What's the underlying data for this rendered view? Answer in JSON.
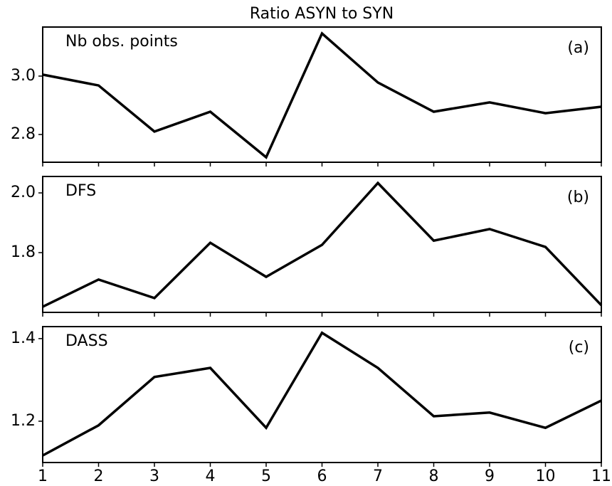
{
  "chart_data": [
    {
      "type": "line",
      "title": "Ratio ASYN to SYN",
      "annotations": [
        "Nb obs. points",
        "(a)"
      ],
      "x": [
        1,
        2,
        3,
        4,
        5,
        6,
        7,
        8,
        9,
        10,
        11
      ],
      "series": [
        {
          "color": "#000000",
          "values": [
            3.005,
            2.968,
            2.81,
            2.878,
            2.722,
            3.146,
            2.978,
            2.878,
            2.91,
            2.873,
            2.895
          ]
        }
      ],
      "xlim": [
        1,
        11
      ],
      "xticks": [
        1,
        2,
        3,
        4,
        5,
        6,
        7,
        8,
        9,
        10,
        11
      ],
      "ylim": [
        2.705,
        3.168
      ],
      "yticks": [
        {
          "value": 2.8,
          "label": "2.8"
        },
        {
          "value": 3.0,
          "label": "3.0"
        }
      ]
    },
    {
      "type": "line",
      "annotations": [
        "DFS",
        "(b)"
      ],
      "x": [
        1,
        2,
        3,
        4,
        5,
        6,
        7,
        8,
        9,
        10,
        11
      ],
      "series": [
        {
          "color": "#000000",
          "values": [
            1.619,
            1.71,
            1.648,
            1.833,
            1.719,
            1.826,
            2.033,
            1.84,
            1.879,
            1.819,
            1.624
          ]
        }
      ],
      "xlim": [
        1,
        11
      ],
      "xticks": [
        1,
        2,
        3,
        4,
        5,
        6,
        7,
        8,
        9,
        10,
        11
      ],
      "ylim": [
        1.6,
        2.055
      ],
      "yticks": [
        {
          "value": 1.8,
          "label": "1.8"
        },
        {
          "value": 2.0,
          "label": "2.0"
        }
      ]
    },
    {
      "type": "line",
      "annotations": [
        "DASS",
        "(c)"
      ],
      "x": [
        1,
        2,
        3,
        4,
        5,
        6,
        7,
        8,
        9,
        10,
        11
      ],
      "series": [
        {
          "color": "#000000",
          "values": [
            1.117,
            1.19,
            1.307,
            1.329,
            1.184,
            1.414,
            1.329,
            1.212,
            1.221,
            1.184,
            1.25
          ]
        }
      ],
      "xlim": [
        1,
        11
      ],
      "xticks": [
        1,
        2,
        3,
        4,
        5,
        6,
        7,
        8,
        9,
        10,
        11
      ],
      "ylim": [
        1.1,
        1.429
      ],
      "yticks": [
        {
          "value": 1.2,
          "label": "1.2"
        },
        {
          "value": 1.4,
          "label": "1.4"
        }
      ]
    }
  ]
}
